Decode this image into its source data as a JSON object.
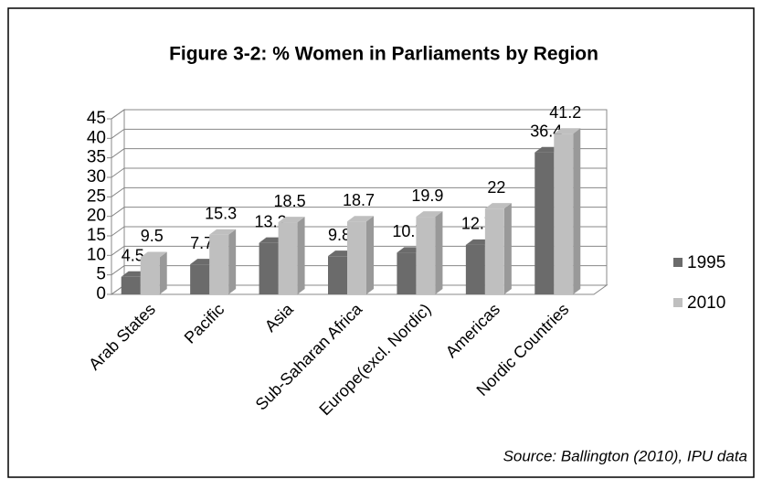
{
  "chart_data": {
    "type": "bar3d",
    "title": "Figure 3-2:  % Women in Parliaments by Region",
    "categories": [
      "Arab States",
      "Pacific",
      "Asia",
      "Sub-Saharan Africa",
      "Europe(excl. Nordic)",
      "Americas",
      "Nordic Countries"
    ],
    "series": [
      {
        "name": "1995",
        "color": "#6b6b6b",
        "values": [
          4.5,
          7.7,
          13.2,
          9.8,
          10.7,
          12.7,
          36.4
        ]
      },
      {
        "name": "2010",
        "color": "#bfbfbf",
        "values": [
          9.5,
          15.3,
          18.5,
          18.7,
          19.9,
          22,
          41.2
        ]
      }
    ],
    "ylim": [
      0,
      45
    ],
    "yticks": [
      0,
      5,
      10,
      15,
      20,
      25,
      30,
      35,
      40,
      45
    ],
    "grid": true,
    "legend": "right",
    "annotation": "Source:  Ballington (2010), IPU data"
  }
}
